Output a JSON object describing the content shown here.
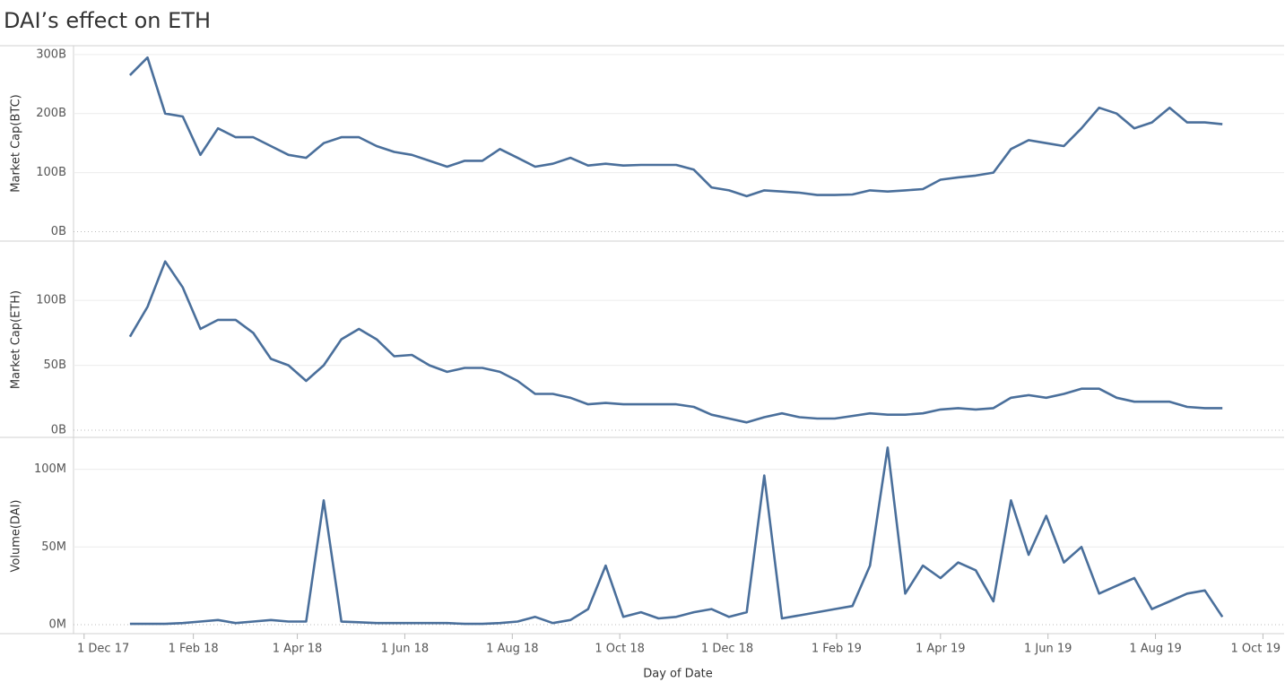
{
  "chart_data": {
    "type": "line",
    "title": "DAI’s effect on ETH",
    "x_label": "Day of Date",
    "color": "#4a6f9b",
    "grid": true,
    "xlim": [
      "2017-11-25",
      "2019-10-13"
    ],
    "xticks": [
      {
        "value": "2017-12-01",
        "label": "1 Dec 17"
      },
      {
        "value": "2018-02-01",
        "label": "1 Feb 18"
      },
      {
        "value": "2018-04-01",
        "label": "1 Apr 18"
      },
      {
        "value": "2018-06-01",
        "label": "1 Jun 18"
      },
      {
        "value": "2018-08-01",
        "label": "1 Aug 18"
      },
      {
        "value": "2018-10-01",
        "label": "1 Oct 18"
      },
      {
        "value": "2018-12-01",
        "label": "1 Dec 18"
      },
      {
        "value": "2019-02-01",
        "label": "1 Feb 19"
      },
      {
        "value": "2019-04-01",
        "label": "1 Apr 19"
      },
      {
        "value": "2019-06-01",
        "label": "1 Jun 19"
      },
      {
        "value": "2019-08-01",
        "label": "1 Aug 19"
      },
      {
        "value": "2019-10-01",
        "label": "1 Oct 19"
      }
    ],
    "x": [
      "2017-12-27",
      "2018-01-06",
      "2018-01-16",
      "2018-01-26",
      "2018-02-05",
      "2018-02-15",
      "2018-02-25",
      "2018-03-07",
      "2018-03-17",
      "2018-03-27",
      "2018-04-06",
      "2018-04-16",
      "2018-04-26",
      "2018-05-06",
      "2018-05-16",
      "2018-05-26",
      "2018-06-05",
      "2018-06-15",
      "2018-06-25",
      "2018-07-05",
      "2018-07-15",
      "2018-07-25",
      "2018-08-04",
      "2018-08-14",
      "2018-08-24",
      "2018-09-03",
      "2018-09-13",
      "2018-09-23",
      "2018-10-03",
      "2018-10-13",
      "2018-10-23",
      "2018-11-02",
      "2018-11-12",
      "2018-11-22",
      "2018-12-02",
      "2018-12-12",
      "2018-12-22",
      "2019-01-01",
      "2019-01-11",
      "2019-01-21",
      "2019-01-31",
      "2019-02-10",
      "2019-02-20",
      "2019-03-02",
      "2019-03-12",
      "2019-03-22",
      "2019-04-01",
      "2019-04-11",
      "2019-04-21",
      "2019-05-01",
      "2019-05-11",
      "2019-05-21",
      "2019-05-31",
      "2019-06-10",
      "2019-06-20",
      "2019-06-30",
      "2019-07-10",
      "2019-07-20",
      "2019-07-30",
      "2019-08-09",
      "2019-08-19",
      "2019-08-29",
      "2019-09-08"
    ],
    "panels": [
      {
        "y_label": "Market Cap(BTC)",
        "ylim": [
          -16,
          315
        ],
        "yticks": [
          {
            "value": 0,
            "label": "0B"
          },
          {
            "value": 100,
            "label": "100B"
          },
          {
            "value": 200,
            "label": "200B"
          },
          {
            "value": 300,
            "label": "300B"
          }
        ],
        "values": [
          265,
          295,
          200,
          195,
          130,
          175,
          160,
          160,
          145,
          130,
          125,
          150,
          160,
          160,
          145,
          135,
          130,
          120,
          110,
          120,
          120,
          140,
          125,
          110,
          115,
          125,
          112,
          115,
          112,
          113,
          113,
          113,
          105,
          75,
          70,
          60,
          70,
          68,
          66,
          62,
          62,
          63,
          70,
          68,
          70,
          72,
          88,
          92,
          95,
          100,
          140,
          155,
          150,
          145,
          175,
          210,
          200,
          175,
          185,
          210,
          185,
          185,
          182
        ]
      },
      {
        "y_label": "Market Cap(ETH)",
        "ylim": [
          -5.5,
          145
        ],
        "yticks": [
          {
            "value": 0,
            "label": "0B"
          },
          {
            "value": 50,
            "label": "50B"
          },
          {
            "value": 100,
            "label": "100B"
          }
        ],
        "values": [
          72,
          95,
          130,
          110,
          78,
          85,
          85,
          75,
          55,
          50,
          38,
          50,
          70,
          78,
          70,
          57,
          58,
          50,
          45,
          48,
          48,
          45,
          38,
          28,
          28,
          25,
          20,
          21,
          20,
          20,
          20,
          20,
          18,
          12,
          9,
          6,
          10,
          13,
          10,
          9,
          9,
          11,
          13,
          12,
          12,
          13,
          16,
          17,
          16,
          17,
          25,
          27,
          25,
          28,
          32,
          32,
          25,
          22,
          22,
          22,
          18,
          17,
          17
        ]
      },
      {
        "y_label": "Volume(DAI)",
        "ylim": [
          -5.8,
          120
        ],
        "yticks": [
          {
            "value": 0,
            "label": "0M"
          },
          {
            "value": 50,
            "label": "50M"
          },
          {
            "value": 100,
            "label": "100M"
          }
        ],
        "values": [
          0.5,
          0.5,
          0.5,
          1,
          2,
          3,
          1,
          2,
          3,
          2,
          2,
          80,
          2,
          1.5,
          1,
          1,
          1,
          1,
          1,
          0.5,
          0.5,
          1,
          2,
          5,
          1,
          3,
          10,
          38,
          5,
          8,
          4,
          5,
          8,
          10,
          5,
          8,
          96,
          4,
          6,
          8,
          10,
          12,
          38,
          114,
          20,
          38,
          30,
          40,
          35,
          15,
          80,
          45,
          70,
          40,
          50,
          20,
          25,
          30,
          10,
          15,
          20,
          22,
          5
        ]
      }
    ]
  }
}
